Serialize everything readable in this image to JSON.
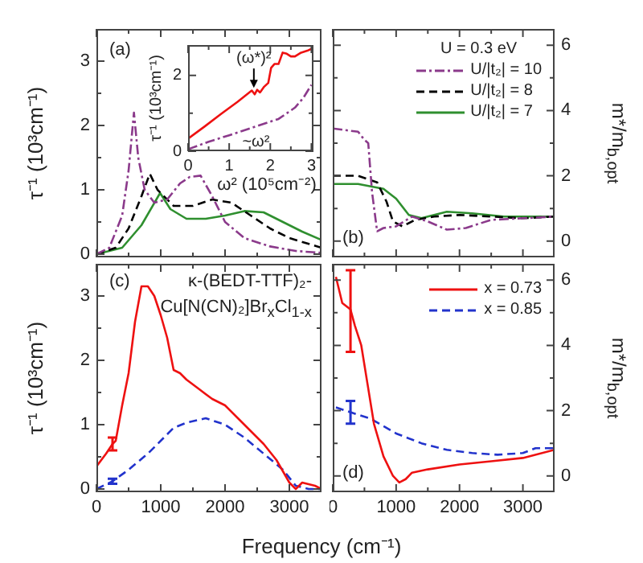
{
  "chart_data": [
    {
      "type": "line",
      "ylabel": "τ⁻¹ (10³cm⁻¹)",
      "annotations": [
        "(a)"
      ],
      "xlim": [
        0,
        3500
      ],
      "ylim": [
        -0.05,
        3.5
      ],
      "tick_labels": "y",
      "xticks": [
        0,
        {
          "value": 500,
          "label": null
        },
        1000,
        {
          "value": 1500,
          "label": null
        },
        2000,
        {
          "value": 2500,
          "label": null
        },
        3000
      ],
      "yticks": [
        0,
        {
          "value": 0.5,
          "label": null
        },
        1,
        {
          "value": 1.5,
          "label": null
        },
        2,
        {
          "value": 2.5,
          "label": null
        },
        3
      ],
      "series": [
        {
          "color": "#8b3a8b",
          "line_style": "dashdot",
          "x": [
            0,
            200,
            400,
            500,
            583,
            650,
            750,
            900,
            1100,
            1300,
            1450,
            1620,
            1800,
            2000,
            2300,
            2700,
            3100,
            3500
          ],
          "values": [
            0,
            0.1,
            0.6,
            1.3,
            2.2,
            1.5,
            1.0,
            0.8,
            0.85,
            1.1,
            1.2,
            1.22,
            0.9,
            0.5,
            0.25,
            0.12,
            0.05,
            0.02
          ]
        },
        {
          "color": "#000000",
          "line_style": "dashed",
          "x": [
            0,
            300,
            500,
            700,
            830,
            950,
            1200,
            1500,
            1800,
            2100,
            2400,
            2700,
            3000,
            3500
          ],
          "values": [
            0,
            0.1,
            0.4,
            0.9,
            1.25,
            1.0,
            0.75,
            0.75,
            0.85,
            0.8,
            0.6,
            0.4,
            0.25,
            0.1
          ]
        },
        {
          "color": "#2f8f2f",
          "line_style": "solid",
          "x": [
            0,
            400,
            700,
            990,
            1150,
            1400,
            1700,
            2000,
            2300,
            2600,
            2900,
            3200,
            3500
          ],
          "values": [
            0,
            0.1,
            0.45,
            0.95,
            0.7,
            0.55,
            0.55,
            0.6,
            0.67,
            0.65,
            0.5,
            0.35,
            0.22
          ]
        }
      ]
    },
    {
      "type": "line",
      "xlabel": "ω² (10⁵cm⁻²)",
      "ylabel": "τ⁻¹ (10³cm⁻¹)",
      "xlim": [
        0,
        3.05
      ],
      "ylim": [
        0,
        2.8
      ],
      "xticks": [
        0,
        {
          "value": 0.5,
          "label": null
        },
        1,
        {
          "value": 1.5,
          "label": null
        },
        2,
        {
          "value": 2.5,
          "label": null
        },
        3
      ],
      "yticks": [
        0,
        {
          "value": 1,
          "label": null
        },
        2
      ],
      "annotations": [
        {
          "text": "(ω*)²",
          "x": 1.6,
          "y": 1.63
        },
        {
          "text": "~ω²",
          "x": 1.2,
          "y": 0.5
        }
      ],
      "series": [
        {
          "color": "#ee1111",
          "line_style": "solid",
          "x": [
            0,
            0.4,
            0.8,
            1.2,
            1.55,
            1.62,
            1.68,
            1.75,
            1.85,
            1.95,
            2.02,
            2.1,
            2.2,
            2.3,
            2.4,
            2.5,
            2.6,
            2.75,
            2.9,
            3.0
          ],
          "values": [
            0.33,
            0.65,
            0.98,
            1.3,
            1.6,
            1.5,
            1.62,
            1.55,
            1.7,
            1.8,
            2.2,
            2.3,
            2.3,
            2.6,
            2.57,
            2.5,
            2.5,
            2.6,
            2.65,
            2.7
          ]
        },
        {
          "color": "#8b3a8b",
          "line_style": "dashdot",
          "x": [
            0,
            0.5,
            1,
            1.5,
            2,
            2.2,
            2.4,
            2.6,
            2.8,
            3.0
          ],
          "values": [
            0.05,
            0.25,
            0.42,
            0.6,
            0.78,
            0.85,
            1.0,
            1.15,
            1.4,
            1.75
          ]
        }
      ]
    },
    {
      "type": "line",
      "ylabel": "m*/m$_{b,opt}$",
      "legend_title": "U = 0.3 eV",
      "legend": "top right",
      "tick_labels": "y",
      "annotations": [
        "(b)"
      ],
      "xlim": [
        0,
        3500
      ],
      "ylim": [
        -0.5,
        6.5
      ],
      "xticks": [
        0,
        {
          "value": 500,
          "label": null
        },
        1000,
        {
          "value": 1500,
          "label": null
        },
        2000,
        {
          "value": 2500,
          "label": null
        },
        3000
      ],
      "yticks": [
        0,
        {
          "value": 1,
          "label": null
        },
        2,
        {
          "value": 3,
          "label": null
        },
        4,
        {
          "value": 5,
          "label": null
        },
        6
      ],
      "series": [
        {
          "name": "U/|t₂| = 10",
          "color": "#8b3a8b",
          "line_style": "dashdot",
          "x": [
            0,
            400,
            500,
            560,
            620,
            700,
            800,
            1000,
            1250,
            1500,
            1800,
            2100,
            2500,
            3000,
            3500
          ],
          "values": [
            3.45,
            3.35,
            3.1,
            3.0,
            1.5,
            0.3,
            0.4,
            0.45,
            0.75,
            0.6,
            0.35,
            0.4,
            0.65,
            0.7,
            0.75
          ]
        },
        {
          "name": "U/|t₂| = 8",
          "color": "#000000",
          "line_style": "dashed",
          "x": [
            0,
            400,
            700,
            850,
            950,
            1100,
            1300,
            1600,
            2000,
            2500,
            3000,
            3500
          ],
          "values": [
            2.0,
            2.0,
            1.8,
            1.2,
            0.6,
            0.45,
            0.65,
            0.75,
            0.8,
            0.75,
            0.7,
            0.75
          ]
        },
        {
          "name": "U/|t₂| = 7",
          "color": "#2f8f2f",
          "line_style": "solid",
          "x": [
            0,
            400,
            800,
            1000,
            1200,
            1400,
            1800,
            2200,
            2700,
            3500
          ],
          "values": [
            1.75,
            1.75,
            1.6,
            1.3,
            0.8,
            0.7,
            0.9,
            0.85,
            0.75,
            0.75
          ]
        }
      ]
    },
    {
      "type": "line",
      "ylabel": "τ⁻¹ (10³cm⁻¹)",
      "annotations": [
        "(c)",
        "κ-(BEDT-TTF)₂-",
        "Cu[N(CN)₂]Br$_{x}$Cl$_{1-x}$"
      ],
      "xlim": [
        0,
        3500
      ],
      "ylim": [
        -0.05,
        3.5
      ],
      "xticks": [
        0,
        {
          "value": 500,
          "label": null
        },
        1000,
        {
          "value": 1500,
          "label": null
        },
        2000,
        {
          "value": 2500,
          "label": null
        },
        3000
      ],
      "yticks": [
        0,
        {
          "value": 0.5,
          "label": null
        },
        1,
        {
          "value": 1.5,
          "label": null
        },
        2,
        {
          "value": 2.5,
          "label": null
        },
        3
      ],
      "series": [
        {
          "color": "#ee1111",
          "line_style": "solid",
          "x": [
            0,
            150,
            250,
            300,
            400,
            500,
            600,
            700,
            800,
            900,
            1000,
            1100,
            1200,
            1300,
            1400,
            1600,
            1800,
            2000,
            2200,
            2400,
            2600,
            2800,
            3000,
            3100,
            3200,
            3400,
            3500
          ],
          "values": [
            0.35,
            0.55,
            0.7,
            0.75,
            1.3,
            1.8,
            2.6,
            3.15,
            3.15,
            3.0,
            2.7,
            2.35,
            1.85,
            1.8,
            1.7,
            1.55,
            1.4,
            1.3,
            1.1,
            0.9,
            0.7,
            0.45,
            0.1,
            0.0,
            0.1,
            0.05,
            0.0
          ],
          "errors": [
            null,
            null,
            [
              0.6,
              0.8
            ],
            null,
            null,
            null,
            null,
            null,
            null,
            null,
            null,
            null,
            null,
            null,
            null,
            null,
            null,
            null,
            null,
            null,
            null,
            null,
            null,
            null,
            null,
            null,
            null
          ]
        },
        {
          "color": "#2233cc",
          "line_style": "dashed",
          "x": [
            0,
            250,
            500,
            800,
            1000,
            1200,
            1400,
            1700,
            2000,
            2300,
            2600,
            2900,
            3100,
            3300,
            3500
          ],
          "values": [
            0.0,
            0.12,
            0.3,
            0.55,
            0.75,
            0.95,
            1.03,
            1.1,
            1.0,
            0.8,
            0.55,
            0.3,
            0.05,
            0.0,
            0.0
          ],
          "errors": [
            null,
            [
              0.08,
              0.16
            ],
            null,
            null,
            null,
            null,
            null,
            null,
            null,
            null,
            null,
            null,
            null,
            null,
            null
          ]
        }
      ]
    },
    {
      "type": "line",
      "xlabel": "Frequency (cm⁻¹)",
      "ylabel": "m*/m$_{b,opt}$",
      "legend": "top right",
      "annotations": [
        "(d)"
      ],
      "xlim": [
        0,
        3500
      ],
      "ylim": [
        -0.5,
        6.5
      ],
      "xticks": [
        0,
        {
          "value": 500,
          "label": null
        },
        1000,
        {
          "value": 1500,
          "label": null
        },
        2000,
        {
          "value": 2500,
          "label": null
        },
        3000
      ],
      "yticks": [
        0,
        {
          "value": 1,
          "label": null
        },
        2,
        {
          "value": 3,
          "label": null
        },
        4,
        {
          "value": 5,
          "label": null
        },
        6
      ],
      "series": [
        {
          "name": "x = 0.73",
          "color": "#ee1111",
          "line_style": "solid",
          "x": [
            50,
            150,
            280,
            350,
            450,
            550,
            650,
            800,
            950,
            1050,
            1150,
            1250,
            1500,
            2000,
            2500,
            3000,
            3500
          ],
          "values": [
            6.1,
            5.3,
            5.1,
            4.6,
            4.0,
            2.8,
            1.6,
            0.6,
            0.0,
            -0.2,
            -0.1,
            0.1,
            0.2,
            0.35,
            0.45,
            0.55,
            0.8
          ],
          "errors": [
            null,
            null,
            [
              3.8,
              6.3
            ],
            null,
            null,
            null,
            null,
            null,
            null,
            null,
            null,
            null,
            null,
            null,
            null,
            null,
            null
          ]
        },
        {
          "name": "x = 0.85",
          "color": "#2233cc",
          "line_style": "dashed",
          "x": [
            50,
            280,
            600,
            1000,
            1400,
            1800,
            2200,
            2600,
            3000,
            3200,
            3500
          ],
          "values": [
            2.1,
            1.95,
            1.75,
            1.3,
            1.0,
            0.8,
            0.7,
            0.65,
            0.7,
            0.85,
            0.85
          ],
          "errors": [
            null,
            [
              1.6,
              2.3
            ],
            null,
            null,
            null,
            null,
            null,
            null,
            null,
            null,
            null
          ]
        }
      ]
    }
  ]
}
